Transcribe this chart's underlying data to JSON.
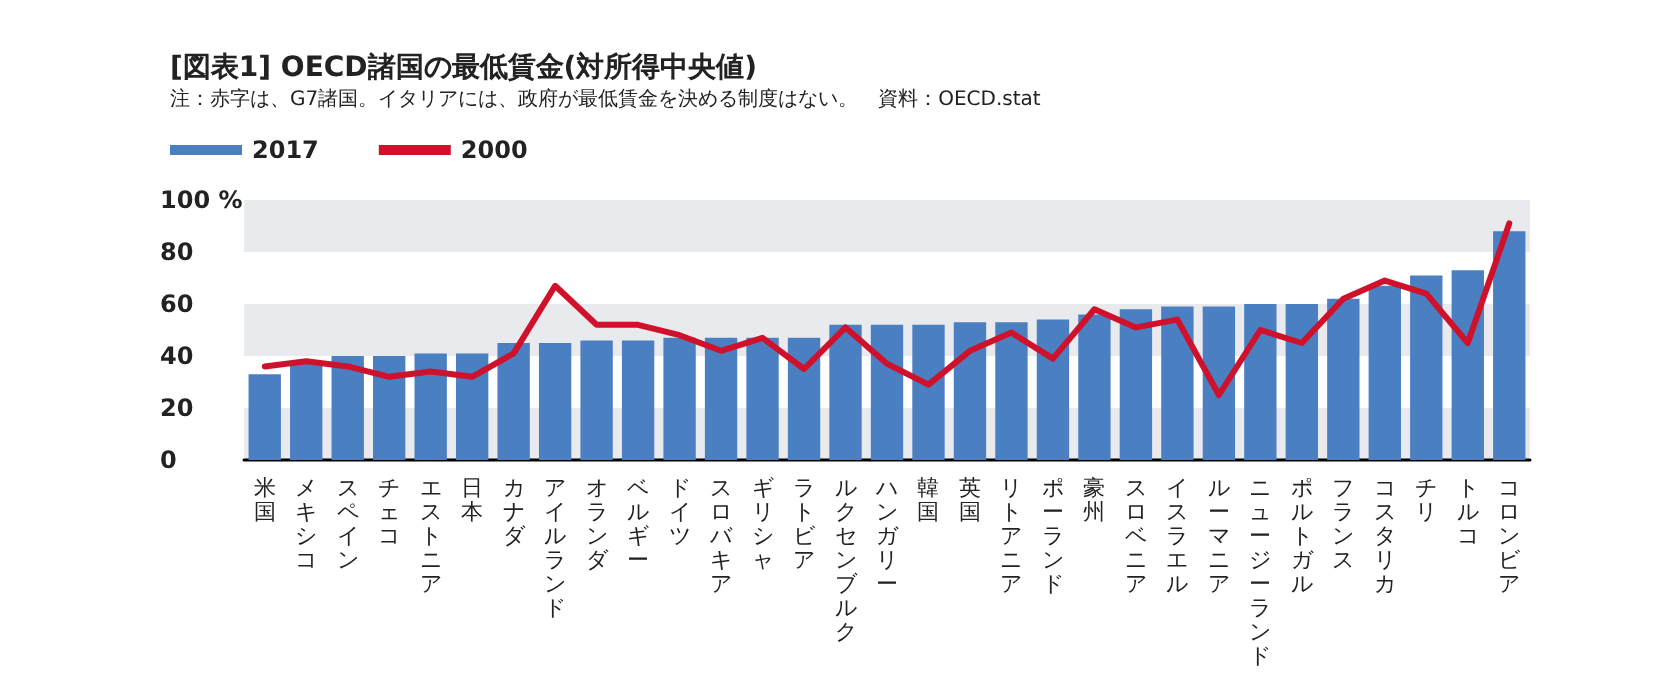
{
  "chart_data": {
    "type": "bar",
    "title": "[図表1] OECD諸国の最低賃金(対所得中央値)",
    "subtitle": "注：赤字は、G7諸国。イタリアには、政府が最低賃金を決める制度はない。　資料：OECD.stat",
    "categories": [
      "米国",
      "メキシコ",
      "スペイン",
      "チェコ",
      "エストニア",
      "日本",
      "カナダ",
      "アイルランド",
      "オランダ",
      "ベルギー",
      "ドイツ",
      "スロバキア",
      "ギリシャ",
      "ラトビア",
      "ルクセンブルク",
      "ハンガリー",
      "韓国",
      "英国",
      "リトアニア",
      "ポーランド",
      "豪州",
      "スロベニア",
      "イスラエル",
      "ルーマニア",
      "ニュージーランド",
      "ポルトガル",
      "フランス",
      "コスタリカ",
      "チリ",
      "トルコ",
      "コロンビア"
    ],
    "series": [
      {
        "name": "2017",
        "color": "#4a7fc1",
        "values": [
          33,
          38,
          40,
          40,
          41,
          41,
          45,
          45,
          46,
          46,
          47,
          47,
          47,
          47,
          52,
          52,
          52,
          53,
          53,
          54,
          56,
          58,
          59,
          59,
          60,
          60,
          62,
          67,
          71,
          73,
          88
        ]
      },
      {
        "name": "2000",
        "type": "line",
        "color": "#d0112b",
        "values": [
          36,
          38,
          36,
          32,
          34,
          32,
          41,
          67,
          52,
          52,
          48,
          42,
          47,
          35,
          51,
          37,
          29,
          42,
          49,
          39,
          58,
          51,
          54,
          25,
          50,
          45,
          62,
          69,
          64,
          45,
          91
        ]
      }
    ],
    "ylim": [
      0,
      100
    ],
    "yticks": [
      0,
      20,
      40,
      60,
      80,
      {
        "value": 100,
        "label": "100 %"
      }
    ],
    "bands": [
      {
        "axis": "y",
        "from": 0,
        "to": 20,
        "color": "#e8eaed"
      },
      {
        "axis": "y",
        "from": 40,
        "to": 60,
        "color": "#e8eaed"
      },
      {
        "axis": "y",
        "from": 80,
        "to": 100,
        "color": "#e8eaed"
      }
    ],
    "legend": "top left",
    "marker": "none",
    "line_style": "solid"
  }
}
